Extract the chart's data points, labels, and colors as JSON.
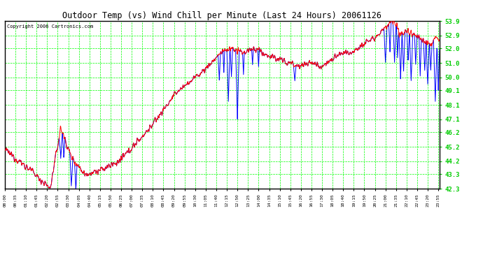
{
  "title": "Outdoor Temp (vs) Wind Chill per Minute (Last 24 Hours) 20061126",
  "copyright": "Copyright 2006 Cartronics.com",
  "yticks": [
    42.3,
    43.3,
    44.2,
    45.2,
    46.2,
    47.1,
    48.1,
    49.1,
    50.0,
    51.0,
    52.0,
    52.9,
    53.9
  ],
  "ylim": [
    42.3,
    53.9
  ],
  "background_color": "#ffffff",
  "grid_color": "#00ff00",
  "plot_bg_color": "#ffffff",
  "red_line_color": "#ff0000",
  "blue_line_color": "#0000ff",
  "title_color": "#000000",
  "copyright_color": "#000000",
  "xtick_color": "#000000",
  "ytick_color": "#00cc00",
  "num_minutes": 1440,
  "x_tick_interval": 35,
  "figwidth": 6.9,
  "figheight": 3.75,
  "dpi": 100
}
